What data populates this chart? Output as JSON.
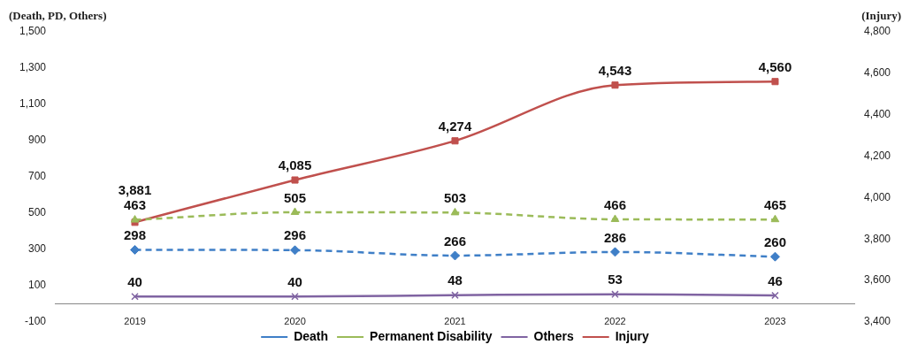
{
  "chart_data": {
    "type": "line",
    "ylabel": "(Death, PD, Others)",
    "y2label": "(Injury)",
    "categories": [
      "2019",
      "2020",
      "2021",
      "2022",
      "2023"
    ],
    "series": [
      {
        "name": "Death",
        "color": "#3f7fc7",
        "values": [
          298,
          296,
          266,
          286,
          260
        ],
        "marker": "diamond",
        "line_style": "dashed"
      },
      {
        "name": "Permanent Disability",
        "color": "#9bbb59",
        "values": [
          463,
          505,
          503,
          466,
          465
        ],
        "marker": "triangle",
        "line_style": "dashed"
      },
      {
        "name": "Others",
        "color": "#8064a2",
        "values": [
          40,
          40,
          48,
          53,
          46
        ],
        "marker": "cross",
        "line_style": "solid"
      },
      {
        "name": "Injury",
        "color": "#c0504d",
        "values": [
          3881,
          4085,
          4274,
          4543,
          4560
        ],
        "value_labels": [
          "3,881",
          "4,085",
          "4,274",
          "4,543",
          "4,560"
        ],
        "marker": "square",
        "line_style": "solid",
        "axis": "y2"
      }
    ],
    "ylim": [
      -100,
      1500
    ],
    "yticks": [
      -100,
      100,
      300,
      500,
      700,
      900,
      {
        "value": 1100,
        "label": "1,100"
      },
      {
        "value": 1300,
        "label": "1,300"
      },
      {
        "value": 1500,
        "label": "1,500"
      }
    ],
    "y2lim": [
      3400,
      4800
    ],
    "y2ticks": [
      {
        "value": 3400,
        "label": "3,400"
      },
      {
        "value": 3600,
        "label": "3,600"
      },
      {
        "value": 3800,
        "label": "3,800"
      },
      {
        "value": 4000,
        "label": "4,000"
      },
      {
        "value": 4200,
        "label": "4,200"
      },
      {
        "value": 4400,
        "label": "4,400"
      },
      {
        "value": 4600,
        "label": "4,600"
      },
      {
        "value": 4800,
        "label": "4,800"
      }
    ],
    "data_labels": true,
    "legend": "bottom",
    "grid": false
  }
}
